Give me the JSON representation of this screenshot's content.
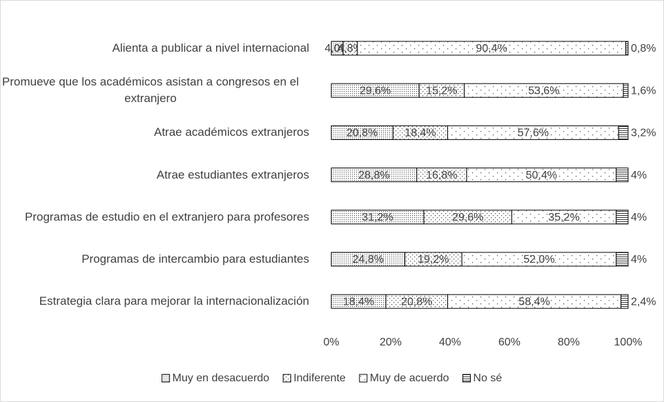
{
  "chart_data": {
    "type": "stacked_barh",
    "categories": [
      "Alienta a publicar a nivel internacional",
      "Promueve que los académicos asistan a congresos en el extranjero",
      "Atrae académicos extranjeros",
      "Atrae estudiantes extranjeros",
      "Programas de estudio en el extranjero para profesores",
      "Programas de intercambio para estudiantes",
      "Estrategia clara para mejorar la internacionalización"
    ],
    "series": [
      {
        "name": "Muy en desacuerdo",
        "color": "#404040",
        "values": [
          4.0,
          29.6,
          20.8,
          28.8,
          31.2,
          24.8,
          18.4
        ],
        "value_labels": [
          "4,0%",
          "29,6%",
          "20,8%",
          "28,8%",
          "31,2%",
          "24,8%",
          "18,4%"
        ]
      },
      {
        "name": "Indiferente",
        "color": "#404040",
        "values": [
          4.8,
          15.2,
          18.4,
          16.8,
          29.6,
          19.2,
          20.8
        ],
        "value_labels": [
          "4,8%",
          "15,2%",
          "18,4%",
          "16,8%",
          "29,6%",
          "19,2%",
          "20,8%"
        ]
      },
      {
        "name": "Muy de acuerdo",
        "color": "#404040",
        "values": [
          90.4,
          53.6,
          57.6,
          50.4,
          35.2,
          52.0,
          58.4
        ],
        "value_labels": [
          "90,4%",
          "53,6%",
          "57,6%",
          "50,4%",
          "35,2%",
          "52,0%",
          "58,4%"
        ]
      },
      {
        "name": "No sé",
        "color": "#404040",
        "values": [
          0.8,
          1.6,
          3.2,
          4,
          4,
          4,
          2.4
        ],
        "value_labels": [
          "0,8%",
          "1,6%",
          "3,2%",
          "4%",
          "4%",
          "4%",
          "2,4%"
        ]
      }
    ],
    "xlim": [
      0,
      100
    ],
    "xticks": [
      {
        "value": 0,
        "label": "0%"
      },
      {
        "value": 20,
        "label": "20%"
      },
      {
        "value": 40,
        "label": "40%"
      },
      {
        "value": 60,
        "label": "60%"
      },
      {
        "value": 80,
        "label": "80%"
      },
      {
        "value": 100,
        "label": "100%"
      }
    ],
    "legend": "bottom"
  }
}
